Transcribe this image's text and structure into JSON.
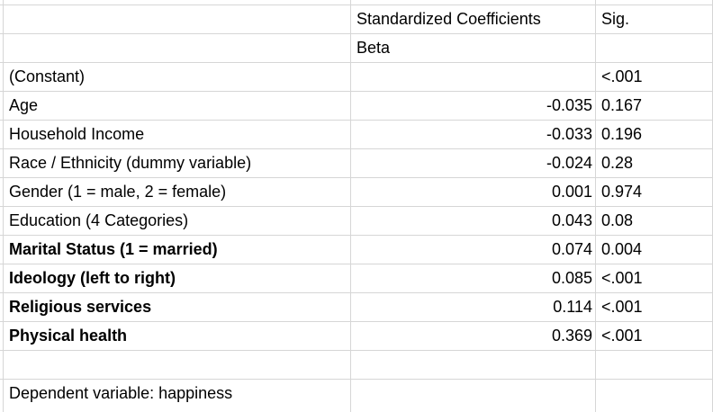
{
  "table": {
    "header": {
      "coefficients": "Standardized Coefficients",
      "sig": "Sig.",
      "beta": "Beta"
    },
    "rows": [
      {
        "label": "(Constant)",
        "sig": "<.001",
        "bold": false
      },
      {
        "label": "Age",
        "beta": "-0.035",
        "sig": "0.167",
        "bold": false
      },
      {
        "label": "Household Income",
        "beta": "-0.033",
        "sig": "0.196",
        "bold": false
      },
      {
        "label": "Race / Ethnicity (dummy variable)",
        "beta": "-0.024",
        "sig": "0.28",
        "bold": false
      },
      {
        "label": "Gender (1 = male, 2 = female)",
        "beta": "0.001",
        "sig": "0.974",
        "bold": false
      },
      {
        "label": "Education (4 Categories)",
        "beta": "0.043",
        "sig": "0.08",
        "bold": false
      },
      {
        "label": "Marital Status (1 = married)",
        "beta": "0.074",
        "sig": "0.004",
        "bold": true
      },
      {
        "label": "Ideology (left to right)",
        "beta": "0.085",
        "sig": "<.001",
        "bold": true
      },
      {
        "label": "Religious services",
        "beta": "0.114",
        "sig": "<.001",
        "bold": true
      },
      {
        "label": "Physical health",
        "beta": "0.369",
        "sig": "<.001",
        "bold": true
      }
    ],
    "note": "Dependent variable: happiness"
  }
}
